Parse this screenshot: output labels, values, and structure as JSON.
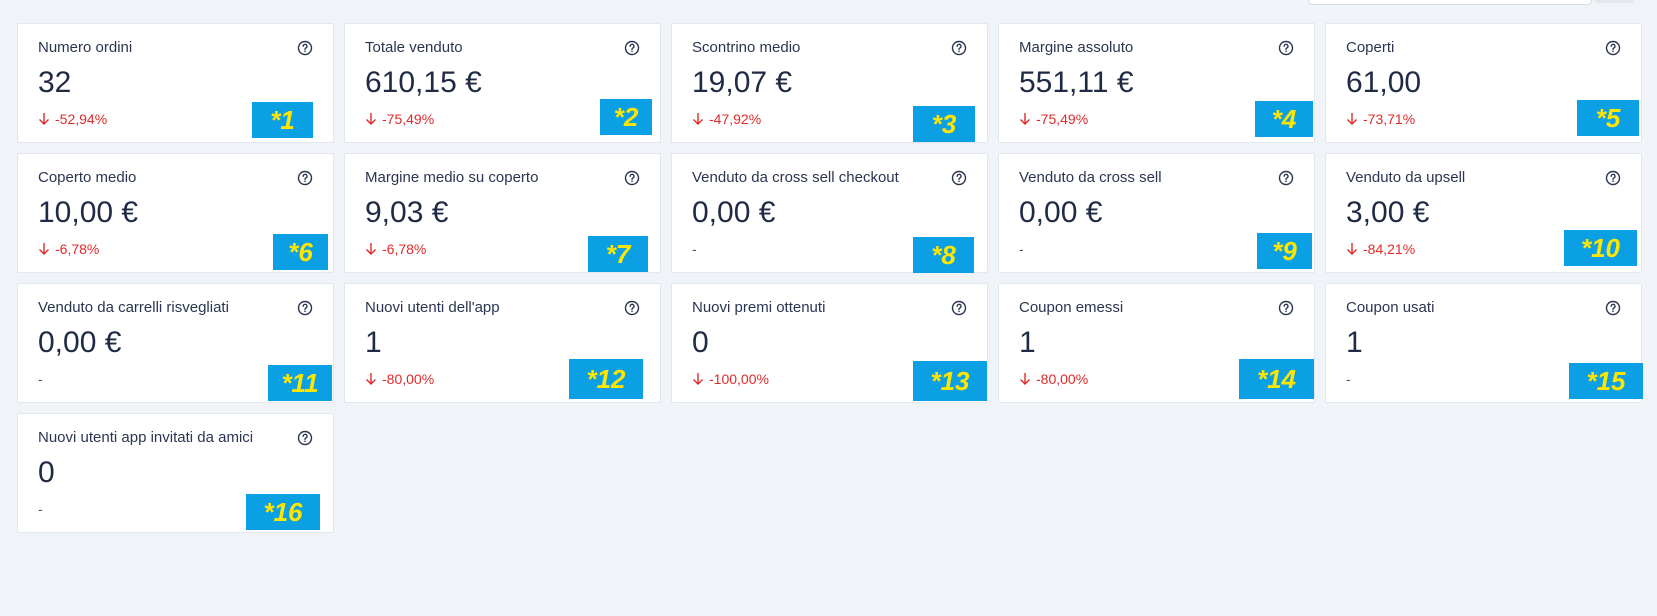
{
  "cards": [
    {
      "title": "Numero ordini",
      "value": "32",
      "delta": "-52,94%",
      "down": true,
      "badge": "*1"
    },
    {
      "title": "Totale venduto",
      "value": "610,15 €",
      "delta": "-75,49%",
      "down": true,
      "badge": "*2"
    },
    {
      "title": "Scontrino medio",
      "value": "19,07 €",
      "delta": "-47,92%",
      "down": true,
      "badge": "*3"
    },
    {
      "title": "Margine assoluto",
      "value": "551,11 €",
      "delta": "-75,49%",
      "down": true,
      "badge": "*4"
    },
    {
      "title": "Coperti",
      "value": "61,00",
      "delta": "-73,71%",
      "down": true,
      "badge": "*5"
    },
    {
      "title": "Coperto medio",
      "value": "10,00 €",
      "delta": "-6,78%",
      "down": true,
      "badge": "*6"
    },
    {
      "title": "Margine medio su coperto",
      "value": "9,03 €",
      "delta": "-6,78%",
      "down": true,
      "badge": "*7"
    },
    {
      "title": "Venduto da cross sell checkout",
      "value": "0,00 €",
      "delta": "-",
      "down": false,
      "badge": "*8"
    },
    {
      "title": "Venduto da cross sell",
      "value": "0,00 €",
      "delta": "-",
      "down": false,
      "badge": "*9"
    },
    {
      "title": "Venduto da upsell",
      "value": "3,00 €",
      "delta": "-84,21%",
      "down": true,
      "badge": "*10"
    },
    {
      "title": "Venduto da carrelli risvegliati",
      "value": "0,00 €",
      "delta": "-",
      "down": false,
      "badge": "*11"
    },
    {
      "title": "Nuovi utenti dell'app",
      "value": "1",
      "delta": "-80,00%",
      "down": true,
      "badge": "*12"
    },
    {
      "title": "Nuovi premi ottenuti",
      "value": "0",
      "delta": "-100,00%",
      "down": true,
      "badge": "*13"
    },
    {
      "title": "Coupon emessi",
      "value": "1",
      "delta": "-80,00%",
      "down": true,
      "badge": "*14"
    },
    {
      "title": "Coupon usati",
      "value": "1",
      "delta": "-",
      "down": false,
      "badge": "*15"
    },
    {
      "title": "Nuovi utenti app invitati da amici",
      "value": "0",
      "delta": "-",
      "down": false,
      "badge": "*16"
    }
  ],
  "colors": {
    "negative": "#e02a2a",
    "badge_bg": "#0b9fe3",
    "badge_text": "#ffe600"
  },
  "icons": {
    "help": "question-circle-icon",
    "trend": "arrow-down-icon"
  }
}
